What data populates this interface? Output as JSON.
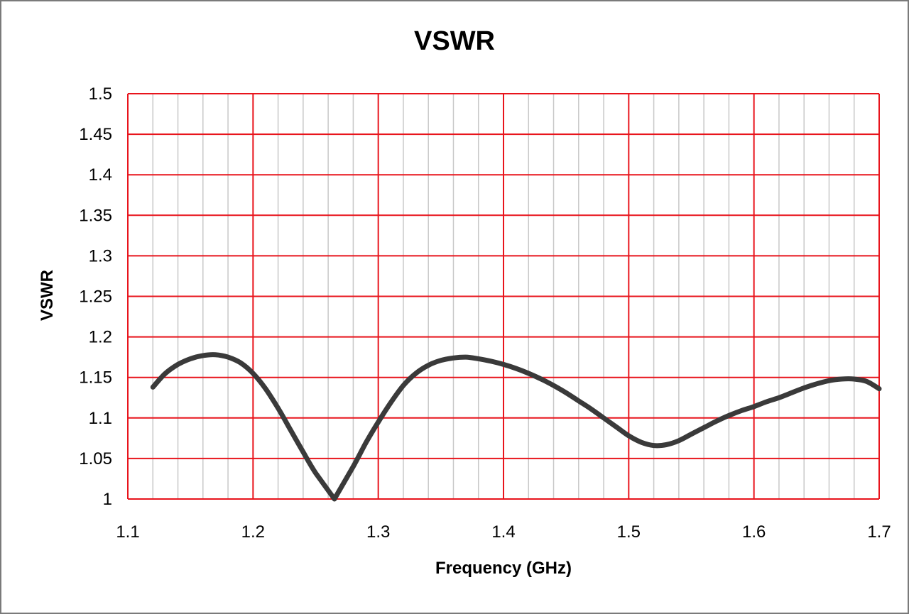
{
  "chart_data": {
    "type": "line",
    "title": "VSWR",
    "xlabel": "Frequency (GHz)",
    "ylabel": "VSWR",
    "xlim": [
      1.1,
      1.7
    ],
    "ylim": [
      1,
      1.5
    ],
    "x_ticks": [
      "1.1",
      "1.2",
      "1.3",
      "1.4",
      "1.5",
      "1.6",
      "1.7"
    ],
    "y_ticks": [
      "1",
      "1.05",
      "1.1",
      "1.15",
      "1.2",
      "1.25",
      "1.3",
      "1.35",
      "1.4",
      "1.45",
      "1.5"
    ],
    "grid": true,
    "legend": "none",
    "major_grid_color": "#e8141c",
    "minor_grid_color": "#c8c8c8",
    "line_color": "#3a3a3a",
    "series": [
      {
        "x": [
          1.12,
          1.13,
          1.14,
          1.15,
          1.16,
          1.17,
          1.18,
          1.19,
          1.2,
          1.21,
          1.22,
          1.23,
          1.24,
          1.25,
          1.265,
          1.28,
          1.29,
          1.3,
          1.31,
          1.32,
          1.33,
          1.34,
          1.35,
          1.36,
          1.37,
          1.38,
          1.39,
          1.4,
          1.41,
          1.42,
          1.43,
          1.44,
          1.45,
          1.46,
          1.47,
          1.48,
          1.49,
          1.5,
          1.51,
          1.52,
          1.53,
          1.54,
          1.55,
          1.56,
          1.57,
          1.58,
          1.59,
          1.6,
          1.61,
          1.62,
          1.63,
          1.64,
          1.65,
          1.66,
          1.67,
          1.68,
          1.69,
          1.7
        ],
        "values": [
          1.138,
          1.155,
          1.166,
          1.173,
          1.177,
          1.178,
          1.175,
          1.168,
          1.155,
          1.136,
          1.112,
          1.085,
          1.058,
          1.032,
          1.0,
          1.04,
          1.069,
          1.095,
          1.119,
          1.14,
          1.155,
          1.165,
          1.171,
          1.174,
          1.175,
          1.173,
          1.17,
          1.166,
          1.161,
          1.155,
          1.148,
          1.14,
          1.131,
          1.121,
          1.111,
          1.1,
          1.089,
          1.078,
          1.07,
          1.066,
          1.067,
          1.072,
          1.08,
          1.088,
          1.096,
          1.103,
          1.109,
          1.114,
          1.12,
          1.125,
          1.131,
          1.137,
          1.142,
          1.146,
          1.148,
          1.148,
          1.145,
          1.136
        ]
      }
    ]
  }
}
